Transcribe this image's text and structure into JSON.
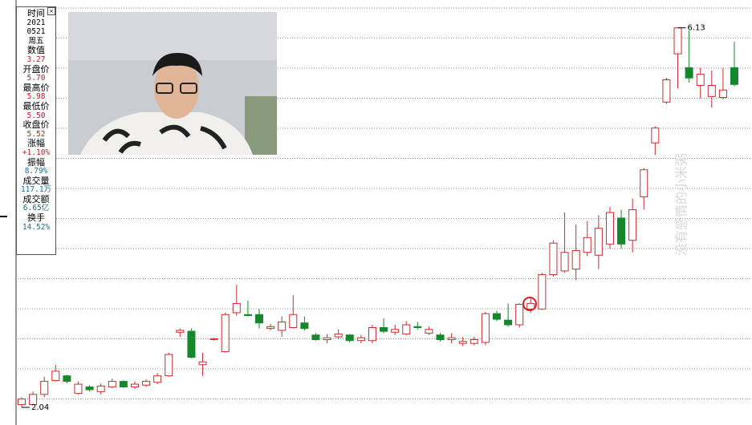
{
  "chart_data": {
    "type": "candlestick",
    "open": [
      2.07,
      2.07,
      2.18,
      2.33,
      2.38,
      2.19,
      2.26,
      2.21,
      2.26,
      2.32,
      2.26,
      2.28,
      2.31,
      2.38,
      2.85,
      2.86,
      2.5,
      2.77,
      2.64,
      3.06,
      3.04,
      3.04,
      2.89,
      2.87,
      2.9,
      2.95,
      2.82,
      2.77,
      2.8,
      2.82,
      2.76,
      2.76,
      2.9,
      2.85,
      2.83,
      2.91,
      2.84,
      2.82,
      2.77,
      2.73,
      2.73,
      2.74,
      3.05,
      2.98,
      2.93,
      3.1,
      3.1,
      3.47,
      3.51,
      3.53,
      3.71,
      3.68,
      3.8,
      4.08,
      3.84,
      4.31,
      4.89,
      5.33,
      5.85,
      5.7,
      5.51,
      5.39,
      5.38,
      5.7
    ],
    "high": [
      2.15,
      2.21,
      2.37,
      2.5,
      2.39,
      2.32,
      2.28,
      2.3,
      2.35,
      2.33,
      2.32,
      2.34,
      2.41,
      2.63,
      2.89,
      2.89,
      2.63,
      2.79,
      3.06,
      3.36,
      3.19,
      3.1,
      2.94,
      3.02,
      3.25,
      3.02,
      2.84,
      2.83,
      2.88,
      2.83,
      2.82,
      2.93,
      3.0,
      2.93,
      2.97,
      2.96,
      2.91,
      2.84,
      2.84,
      2.8,
      2.8,
      3.07,
      3.08,
      3.16,
      3.16,
      3.22,
      3.49,
      3.84,
      4.14,
      4.01,
      4.05,
      4.11,
      4.2,
      4.17,
      4.29,
      4.62,
      5.07,
      5.59,
      6.13,
      6.1,
      5.7,
      5.67,
      5.7,
      5.98
    ],
    "low": [
      2.04,
      2.06,
      2.15,
      2.32,
      2.3,
      2.18,
      2.21,
      2.18,
      2.25,
      2.25,
      2.24,
      2.26,
      2.29,
      2.37,
      2.8,
      2.57,
      2.38,
      2.76,
      2.63,
      3.03,
      3.02,
      2.89,
      2.87,
      2.8,
      2.89,
      2.87,
      2.76,
      2.73,
      2.78,
      2.74,
      2.73,
      2.73,
      2.84,
      2.82,
      2.82,
      2.88,
      2.82,
      2.75,
      2.73,
      2.7,
      2.71,
      2.71,
      2.97,
      2.91,
      2.9,
      3.06,
      3.09,
      3.45,
      3.49,
      3.41,
      3.67,
      3.53,
      3.75,
      3.75,
      3.71,
      4.17,
      4.76,
      5.31,
      5.48,
      5.54,
      5.37,
      5.27,
      5.36,
      5.5
    ],
    "close": [
      2.13,
      2.18,
      2.32,
      2.43,
      2.32,
      2.29,
      2.23,
      2.27,
      2.32,
      2.26,
      2.29,
      2.32,
      2.38,
      2.61,
      2.87,
      2.58,
      2.53,
      2.78,
      3.04,
      3.16,
      3.03,
      2.95,
      2.91,
      2.96,
      3.04,
      2.89,
      2.77,
      2.79,
      2.83,
      2.76,
      2.79,
      2.9,
      2.86,
      2.88,
      2.93,
      2.9,
      2.88,
      2.77,
      2.79,
      2.75,
      2.77,
      3.05,
      2.99,
      2.93,
      3.15,
      3.16,
      3.47,
      3.81,
      3.71,
      3.73,
      3.87,
      3.97,
      4.14,
      3.8,
      4.17,
      4.6,
      5.05,
      5.57,
      6.13,
      5.59,
      5.63,
      5.51,
      5.46,
      5.52
    ],
    "up_color": "#d42a2a",
    "down_color": "#15882c",
    "ylim": [
      1.85,
      6.43
    ],
    "grid": true,
    "annotations": {
      "high": 6.13,
      "low": 2.04
    },
    "watermark": "没有感情的小米粥"
  },
  "info_panel": [
    {
      "label": "时间",
      "values": [
        "2021",
        "0521",
        "周五"
      ],
      "color": "#000000"
    },
    {
      "label": "数值",
      "values": [
        "3.27"
      ],
      "color": "#c02020"
    },
    {
      "label": "开盘价",
      "values": [
        "5.70"
      ],
      "color": "#c02020"
    },
    {
      "label": "最高价",
      "values": [
        "5.98"
      ],
      "color": "#c02020"
    },
    {
      "label": "最低价",
      "values": [
        "5.50"
      ],
      "color": "#c02020"
    },
    {
      "label": "收盘价",
      "values": [
        "5.52"
      ],
      "color": "#c02020"
    },
    {
      "label": "涨幅",
      "values": [
        "+1.10%"
      ],
      "color": "#c02020"
    },
    {
      "label": "振幅",
      "values": [
        "8.79%"
      ],
      "color": "#1a6fa0"
    },
    {
      "label": "成交量",
      "values": [
        "117.1万"
      ],
      "color": "#1a6fa0"
    },
    {
      "label": "成交额",
      "values": [
        "6.65亿"
      ],
      "color": "#1a6fa0"
    },
    {
      "label": "换手",
      "values": [
        "14.52%"
      ],
      "color": "#1a6fa0"
    }
  ]
}
